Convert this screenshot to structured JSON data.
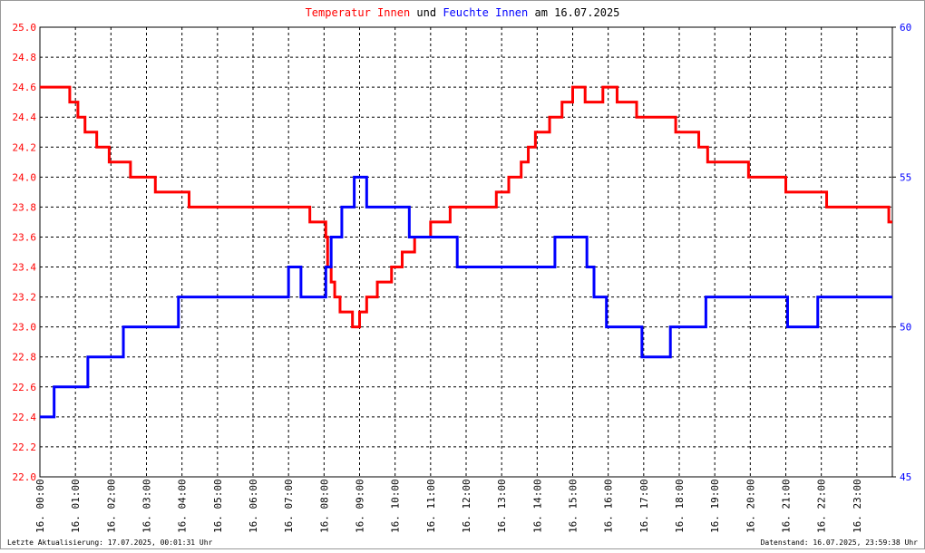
{
  "chart_data": {
    "type": "line",
    "title_parts": [
      "Temperatur Innen",
      "und",
      "Feuchte Innen",
      "am 16.07.2025"
    ],
    "footer_left": "Letzte Aktualisierung: 17.07.2025, 00:01:31 Uhr",
    "footer_right": "Datenstand: 16.07.2025, 23:59:38 Uhr",
    "grid": true,
    "xlim": [
      0,
      24
    ],
    "xticks": [
      {
        "value": 0,
        "label": "16. 00:00"
      },
      {
        "value": 1,
        "label": "16. 01:00"
      },
      {
        "value": 2,
        "label": "16. 02:00"
      },
      {
        "value": 3,
        "label": "16. 03:00"
      },
      {
        "value": 4,
        "label": "16. 04:00"
      },
      {
        "value": 5,
        "label": "16. 05:00"
      },
      {
        "value": 6,
        "label": "16. 06:00"
      },
      {
        "value": 7,
        "label": "16. 07:00"
      },
      {
        "value": 8,
        "label": "16. 08:00"
      },
      {
        "value": 9,
        "label": "16. 09:00"
      },
      {
        "value": 10,
        "label": "16. 10:00"
      },
      {
        "value": 11,
        "label": "16. 11:00"
      },
      {
        "value": 12,
        "label": "16. 12:00"
      },
      {
        "value": 13,
        "label": "16. 13:00"
      },
      {
        "value": 14,
        "label": "16. 14:00"
      },
      {
        "value": 15,
        "label": "16. 15:00"
      },
      {
        "value": 16,
        "label": "16. 16:00"
      },
      {
        "value": 17,
        "label": "16. 17:00"
      },
      {
        "value": 18,
        "label": "16. 18:00"
      },
      {
        "value": 19,
        "label": "16. 19:00"
      },
      {
        "value": 20,
        "label": "16. 20:00"
      },
      {
        "value": 21,
        "label": "16. 21:00"
      },
      {
        "value": 22,
        "label": "16. 22:00"
      },
      {
        "value": 23,
        "label": "16. 23:00"
      }
    ],
    "ylim": [
      22.0,
      25.0
    ],
    "yticks": [
      {
        "value": 22.0,
        "label": "22.0"
      },
      {
        "value": 22.2,
        "label": "22.2"
      },
      {
        "value": 22.4,
        "label": "22.4"
      },
      {
        "value": 22.6,
        "label": "22.6"
      },
      {
        "value": 22.8,
        "label": "22.8"
      },
      {
        "value": 23.0,
        "label": "23.0"
      },
      {
        "value": 23.2,
        "label": "23.2"
      },
      {
        "value": 23.4,
        "label": "23.4"
      },
      {
        "value": 23.6,
        "label": "23.6"
      },
      {
        "value": 23.8,
        "label": "23.8"
      },
      {
        "value": 24.0,
        "label": "24.0"
      },
      {
        "value": 24.2,
        "label": "24.2"
      },
      {
        "value": 24.4,
        "label": "24.4"
      },
      {
        "value": 24.6,
        "label": "24.6"
      },
      {
        "value": 24.8,
        "label": "24.8"
      },
      {
        "value": 25.0,
        "label": "25.0"
      }
    ],
    "y2lim": [
      45,
      60
    ],
    "y2ticks": [
      45,
      50,
      55,
      60
    ],
    "series": [
      {
        "name": "Temperatur Innen",
        "color": "#ff0000",
        "axis": "y",
        "x": [
          0,
          0.84,
          0.84,
          1.07,
          1.07,
          1.27,
          1.27,
          1.6,
          1.6,
          1.95,
          1.95,
          2.55,
          2.55,
          3.25,
          3.25,
          4.2,
          4.2,
          7.6,
          7.6,
          8.05,
          8.05,
          8.1,
          8.1,
          8.2,
          8.2,
          8.3,
          8.3,
          8.45,
          8.45,
          8.8,
          8.8,
          9.0,
          9.0,
          9.2,
          9.2,
          9.5,
          9.5,
          9.9,
          9.9,
          10.2,
          10.2,
          10.55,
          10.55,
          11.0,
          11.0,
          11.55,
          11.55,
          12.85,
          12.85,
          13.2,
          13.2,
          13.55,
          13.55,
          13.75,
          13.75,
          13.95,
          13.95,
          14.35,
          14.35,
          14.7,
          14.7,
          15.0,
          15.0,
          15.35,
          15.35,
          15.85,
          15.85,
          16.25,
          16.25,
          16.8,
          16.8,
          17.9,
          17.9,
          18.55,
          18.55,
          18.8,
          18.8,
          19.95,
          19.95,
          21.0,
          21.0,
          22.15,
          22.15,
          23.9,
          23.9,
          24
        ],
        "values": [
          24.6,
          24.6,
          24.5,
          24.5,
          24.4,
          24.4,
          24.3,
          24.3,
          24.2,
          24.2,
          24.1,
          24.1,
          24.0,
          24.0,
          23.9,
          23.9,
          23.8,
          23.8,
          23.7,
          23.7,
          23.6,
          23.6,
          23.4,
          23.4,
          23.3,
          23.3,
          23.2,
          23.2,
          23.1,
          23.1,
          23.0,
          23.0,
          23.1,
          23.1,
          23.2,
          23.2,
          23.3,
          23.3,
          23.4,
          23.4,
          23.5,
          23.5,
          23.6,
          23.6,
          23.7,
          23.7,
          23.8,
          23.8,
          23.9,
          23.9,
          24.0,
          24.0,
          24.1,
          24.1,
          24.2,
          24.2,
          24.3,
          24.3,
          24.4,
          24.4,
          24.5,
          24.5,
          24.6,
          24.6,
          24.5,
          24.5,
          24.6,
          24.6,
          24.5,
          24.5,
          24.4,
          24.4,
          24.3,
          24.3,
          24.2,
          24.2,
          24.1,
          24.1,
          24.0,
          24.0,
          23.9,
          23.9,
          23.8,
          23.8,
          23.7,
          23.7
        ]
      },
      {
        "name": "Feuchte Innen",
        "color": "#0000ff",
        "axis": "y2",
        "x": [
          0,
          0.4,
          0.4,
          1.35,
          1.35,
          2.35,
          2.35,
          3.9,
          3.9,
          7.0,
          7.0,
          7.35,
          7.35,
          8.05,
          8.05,
          8.2,
          8.2,
          8.5,
          8.5,
          8.85,
          8.85,
          9.2,
          9.2,
          10.4,
          10.4,
          11.75,
          11.75,
          14.5,
          14.5,
          15.4,
          15.4,
          15.6,
          15.6,
          15.95,
          15.95,
          16.95,
          16.95,
          17.75,
          17.75,
          18.75,
          18.75,
          21.05,
          21.05,
          21.9,
          21.9,
          24
        ],
        "values": [
          47,
          47,
          48,
          48,
          49,
          49,
          50,
          50,
          51,
          51,
          52,
          52,
          51,
          51,
          52,
          52,
          53,
          53,
          54,
          54,
          55,
          55,
          54,
          54,
          53,
          53,
          52,
          52,
          53,
          53,
          52,
          52,
          51,
          51,
          50,
          50,
          49,
          49,
          50,
          50,
          51,
          51,
          50,
          50,
          51,
          51
        ]
      }
    ]
  }
}
